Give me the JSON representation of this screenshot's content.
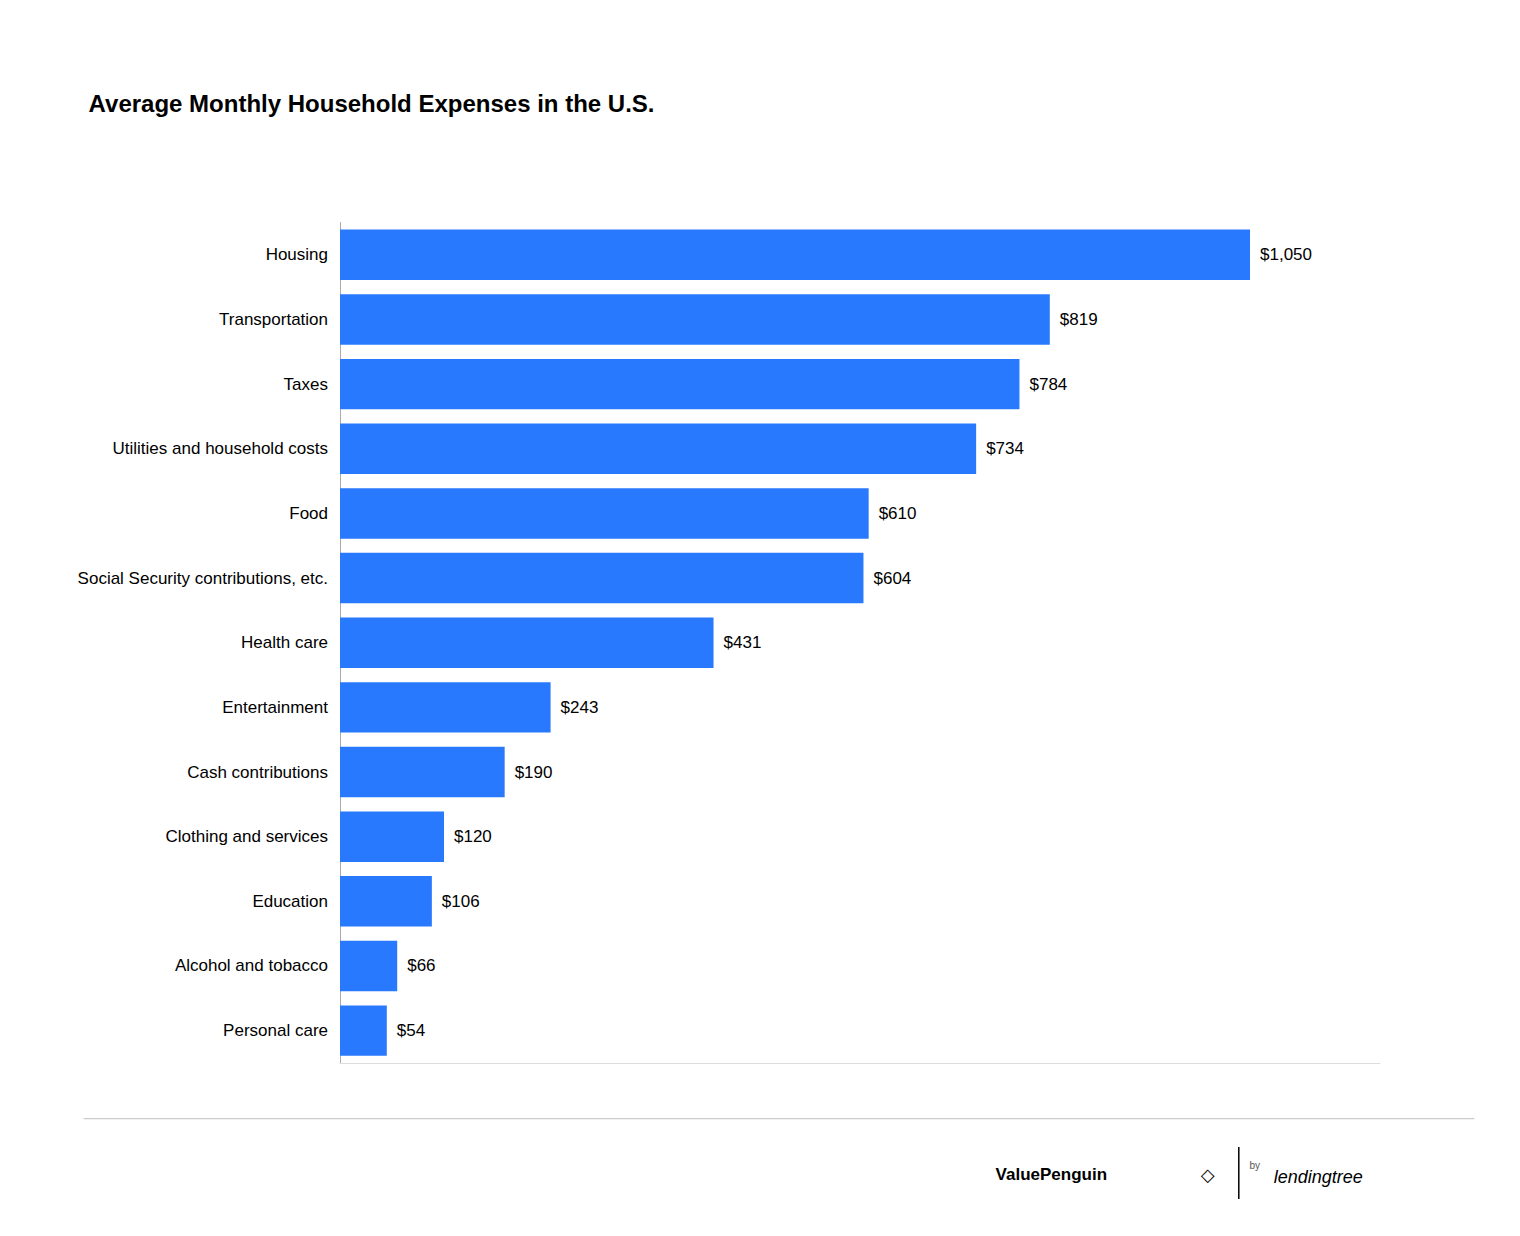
{
  "chart_data": {
    "type": "bar",
    "orientation": "horizontal",
    "title": "Average Monthly Household Expenses in the U.S.",
    "categories": [
      "Personal care",
      "Alcohol and tobacco",
      "Education",
      "Clothing and services",
      "Cash contributions",
      "Entertainment",
      "Health care",
      "Social Security contributions, etc.",
      "Food",
      "Utilities and household costs",
      "Taxes",
      "Transportation",
      "Housing"
    ],
    "values": [
      54,
      66,
      106,
      120,
      190,
      243,
      431,
      604,
      610,
      734,
      784,
      819,
      1050
    ],
    "value_labels": [
      "$54",
      "$66",
      "$106",
      "$120",
      "$190",
      "$243",
      "$431",
      "$604",
      "$610",
      "$734",
      "$784",
      "$819",
      "$1,050"
    ],
    "data_labels": true,
    "color": "#2979FF",
    "xlim": [
      0,
      1200
    ],
    "tick_labels": "y",
    "grid": false,
    "annotations": [
      "ValuePenguin",
      "◇",
      "by",
      "lendingtree"
    ]
  }
}
